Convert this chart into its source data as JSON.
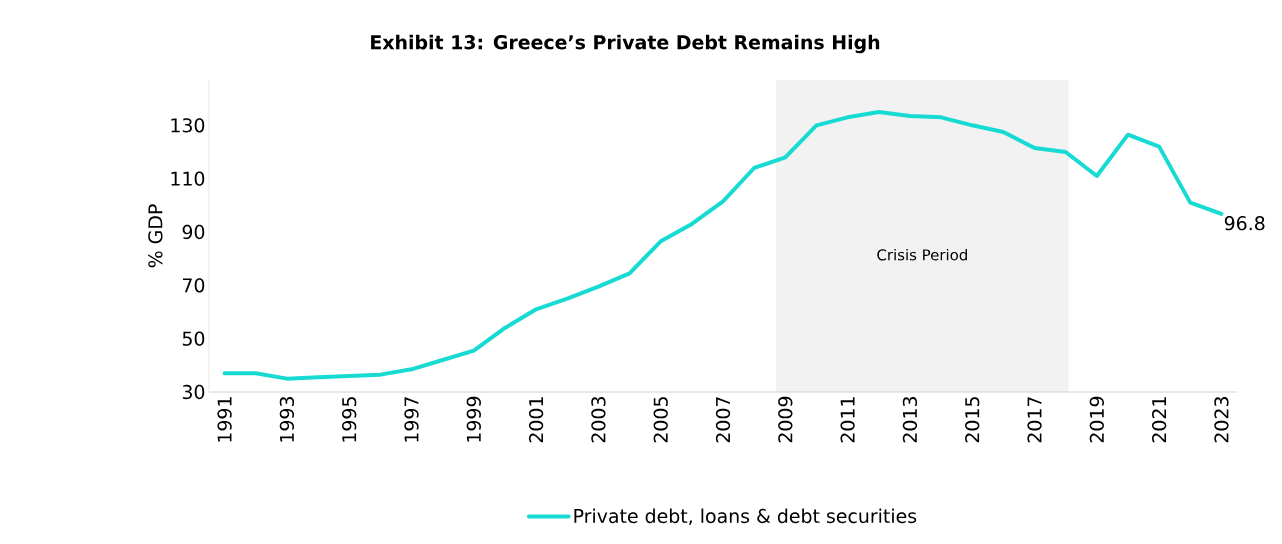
{
  "chart_data": {
    "type": "line",
    "title": "Exhibit 13: Greece’s Private Debt Remains High",
    "ylabel": "% GDP",
    "x": [
      1991,
      1992,
      1993,
      1994,
      1995,
      1996,
      1997,
      1998,
      1999,
      2000,
      2001,
      2002,
      2003,
      2004,
      2005,
      2006,
      2007,
      2008,
      2009,
      2010,
      2011,
      2012,
      2013,
      2014,
      2015,
      2016,
      2017,
      2018,
      2019,
      2020,
      2021,
      2022,
      2023
    ],
    "series": [
      {
        "name": "Private debt, loans & debt securities",
        "color": "#17dbd2",
        "values": [
          37,
          37,
          35,
          35.5,
          36,
          36.5,
          38.5,
          42,
          45.5,
          54,
          61,
          65,
          69.5,
          74.5,
          86.5,
          93,
          101.5,
          114,
          118,
          130,
          133,
          135,
          133.5,
          133,
          130,
          127.5,
          121.5,
          120,
          111,
          126.5,
          122,
          101,
          96.8
        ],
        "value_labels": [
          null,
          null,
          null,
          null,
          null,
          null,
          null,
          null,
          null,
          null,
          null,
          null,
          null,
          null,
          null,
          null,
          null,
          null,
          null,
          null,
          null,
          null,
          null,
          null,
          null,
          null,
          null,
          null,
          null,
          null,
          null,
          null,
          "96.8"
        ]
      }
    ],
    "xlim": [
      1990.5,
      2023.5
    ],
    "ylim": [
      30,
      147
    ],
    "xticks": [
      1991,
      1993,
      1995,
      1997,
      1999,
      2001,
      2003,
      2005,
      2007,
      2009,
      2011,
      2013,
      2015,
      2017,
      2019,
      2021,
      2023
    ],
    "yticks": [
      30,
      50,
      70,
      90,
      110,
      130
    ],
    "bands": [
      {
        "axis": "x",
        "from": 2008.7,
        "to": 2018.1,
        "label": "Crisis Period",
        "color": "#f2f2f2"
      }
    ],
    "legend": "bottom"
  }
}
